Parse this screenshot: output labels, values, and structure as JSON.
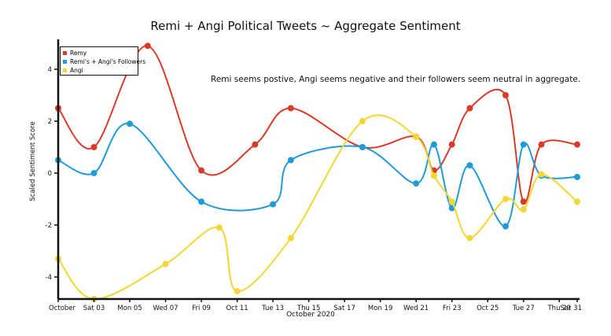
{
  "chart_data": {
    "type": "line",
    "title": "Remi + Angi Political Tweets ~ Aggregate Sentiment",
    "annotation": "Remi seems postive, Angi seems negative and their followers seem neutral in aggregate.",
    "xlabel": "October 2020",
    "ylabel": "Scaled Sentiment Score",
    "x_range": [
      "2020-10-02",
      "2020-10-31"
    ],
    "ylim": [
      -4.85,
      5.0
    ],
    "x_ticks": [
      {
        "date": "2020-10-02",
        "label": "October"
      },
      {
        "date": "2020-10-04",
        "label": "Sat 03"
      },
      {
        "date": "2020-10-06",
        "label": "Mon 05"
      },
      {
        "date": "2020-10-08",
        "label": "Wed 07"
      },
      {
        "date": "2020-10-10",
        "label": "Fri 09"
      },
      {
        "date": "2020-10-12",
        "label": "Oct 11"
      },
      {
        "date": "2020-10-14",
        "label": "Tue 13"
      },
      {
        "date": "2020-10-16",
        "label": "Thu 15"
      },
      {
        "date": "2020-10-18",
        "label": "Sat 17"
      },
      {
        "date": "2020-10-20",
        "label": "Mon 19"
      },
      {
        "date": "2020-10-22",
        "label": "Wed 21"
      },
      {
        "date": "2020-10-24",
        "label": "Fri 23"
      },
      {
        "date": "2020-10-26",
        "label": "Oct 25"
      },
      {
        "date": "2020-10-28",
        "label": "Tue 27"
      },
      {
        "date": "2020-10-30",
        "label": "Thu 29"
      },
      {
        "date": "2020-10-31",
        "label": "Sat 31"
      }
    ],
    "y_ticks": [
      {
        "value": 4,
        "label": "4"
      },
      {
        "value": 2,
        "label": "2"
      },
      {
        "value": 0,
        "label": "0"
      },
      {
        "value": -2,
        "label": "-2"
      },
      {
        "value": -4,
        "label": "-4"
      }
    ],
    "legend_position": "top-left",
    "grid": false,
    "series": [
      {
        "name": "Remy",
        "color": "#d93a2a",
        "points": [
          [
            "2020-10-02",
            2.5
          ],
          [
            "2020-10-04",
            1.0
          ],
          [
            "2020-10-07",
            4.9
          ],
          [
            "2020-10-10",
            0.1
          ],
          [
            "2020-10-13",
            1.1
          ],
          [
            "2020-10-15",
            2.5
          ],
          [
            "2020-10-19",
            1.0
          ],
          [
            "2020-10-22",
            1.4
          ],
          [
            "2020-10-23",
            0.1
          ],
          [
            "2020-10-24",
            1.1
          ],
          [
            "2020-10-25",
            2.5
          ],
          [
            "2020-10-27",
            3.0
          ],
          [
            "2020-10-28",
            -1.1
          ],
          [
            "2020-10-29",
            1.1
          ],
          [
            "2020-10-31",
            1.1
          ]
        ]
      },
      {
        "name": "Remi's + Angi's Followers",
        "color": "#1f9bd7",
        "points": [
          [
            "2020-10-02",
            0.5
          ],
          [
            "2020-10-04",
            0.0
          ],
          [
            "2020-10-06",
            1.9
          ],
          [
            "2020-10-10",
            -1.1
          ],
          [
            "2020-10-14",
            -1.2
          ],
          [
            "2020-10-15",
            0.5
          ],
          [
            "2020-10-19",
            1.0
          ],
          [
            "2020-10-22",
            -0.4
          ],
          [
            "2020-10-23",
            1.1
          ],
          [
            "2020-10-24",
            -1.35
          ],
          [
            "2020-10-25",
            0.3
          ],
          [
            "2020-10-27",
            -2.05
          ],
          [
            "2020-10-28",
            1.1
          ],
          [
            "2020-10-29",
            -0.1
          ],
          [
            "2020-10-31",
            -0.15
          ]
        ]
      },
      {
        "name": "Angi",
        "color": "#f3d533",
        "points": [
          [
            "2020-10-02",
            -3.3
          ],
          [
            "2020-10-04",
            -4.85
          ],
          [
            "2020-10-08",
            -3.5
          ],
          [
            "2020-10-11",
            -2.1
          ],
          [
            "2020-10-12",
            -4.55
          ],
          [
            "2020-10-15",
            -2.5
          ],
          [
            "2020-10-19",
            2.0
          ],
          [
            "2020-10-22",
            1.4
          ],
          [
            "2020-10-23",
            -0.1
          ],
          [
            "2020-10-24",
            -1.1
          ],
          [
            "2020-10-25",
            -2.5
          ],
          [
            "2020-10-27",
            -1.0
          ],
          [
            "2020-10-28",
            -1.4
          ],
          [
            "2020-10-29",
            -0.05
          ],
          [
            "2020-10-31",
            -1.1
          ]
        ]
      }
    ]
  }
}
